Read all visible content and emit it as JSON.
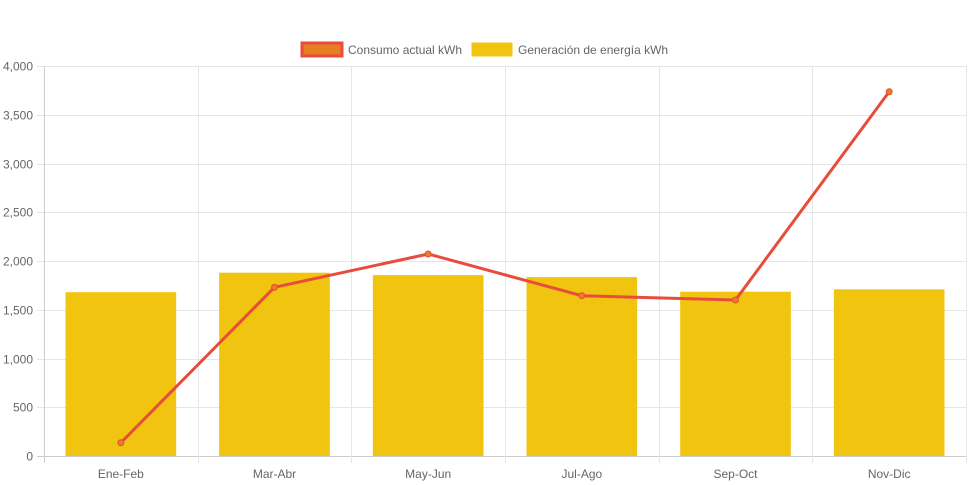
{
  "chart_data": {
    "type": "bar",
    "title": "",
    "xlabel": "",
    "ylabel": "",
    "categories": [
      "Ene-Feb",
      "Mar-Abr",
      "May-Jun",
      "Jul-Ago",
      "Sep-Oct",
      "Nov-Dic"
    ],
    "ylim": [
      0,
      4000
    ],
    "yticks": [
      0,
      500,
      1000,
      1500,
      2000,
      2500,
      3000,
      3500,
      4000
    ],
    "ytick_labels": [
      "0",
      "500",
      "1,000",
      "1,500",
      "2,000",
      "2,500",
      "3,000",
      "3,500",
      "4,000"
    ],
    "grid": true,
    "legend_position": "top-center",
    "series": [
      {
        "name": "Consumo actual kWh",
        "type": "line",
        "color": "#e74c3c",
        "point_color": "#e67e22",
        "values": [
          136,
          1730,
          2072,
          1644,
          1600,
          3736
        ]
      },
      {
        "name": "Generación de energía kWh",
        "type": "bar",
        "color": "#f1c40f",
        "values": [
          1680,
          1880,
          1855,
          1835,
          1685,
          1710
        ]
      }
    ]
  }
}
